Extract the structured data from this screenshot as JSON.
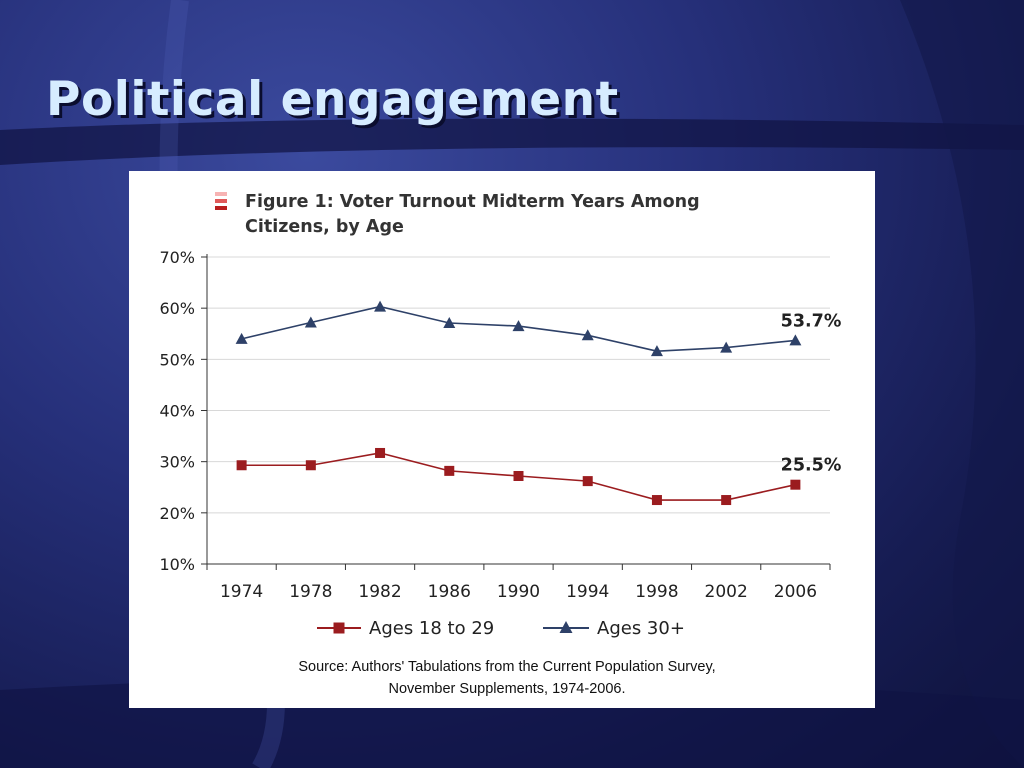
{
  "slide": {
    "title": "Political engagement"
  },
  "chart_data": {
    "type": "line",
    "title_lines": [
      "Figure 1: Voter Turnout Midterm Years Among",
      "Citizens, by Age"
    ],
    "x": [
      "1974",
      "1978",
      "1982",
      "1986",
      "1990",
      "1994",
      "1998",
      "2002",
      "2006"
    ],
    "ylim": [
      10,
      70
    ],
    "yticks": [
      10,
      20,
      30,
      40,
      50,
      60,
      70
    ],
    "ytick_labels": [
      "10%",
      "20%",
      "30%",
      "40%",
      "50%",
      "60%",
      "70%"
    ],
    "grid": true,
    "legend_position": "bottom",
    "series": [
      {
        "name": "Ages 18 to 29",
        "color": "#9b1c1f",
        "marker": "square",
        "values": [
          29.3,
          29.3,
          31.7,
          28.2,
          27.2,
          26.2,
          22.5,
          22.5,
          25.5
        ],
        "end_label": "25.5%"
      },
      {
        "name": "Ages 30+",
        "color": "#2e4168",
        "marker": "triangle",
        "values": [
          54.0,
          57.2,
          60.3,
          57.1,
          56.5,
          54.7,
          51.6,
          52.3,
          53.7
        ],
        "end_label": "53.7%"
      }
    ],
    "source_lines": [
      "Source: Authors' Tabulations from the Current Population Survey,",
      "November Supplements, 1974-2006."
    ]
  },
  "colors": {
    "title": "#d6ecff",
    "grid": "#d8d8d8",
    "icon_bars": [
      "#f7b3b3",
      "#e05a5a",
      "#b81e1e"
    ]
  }
}
